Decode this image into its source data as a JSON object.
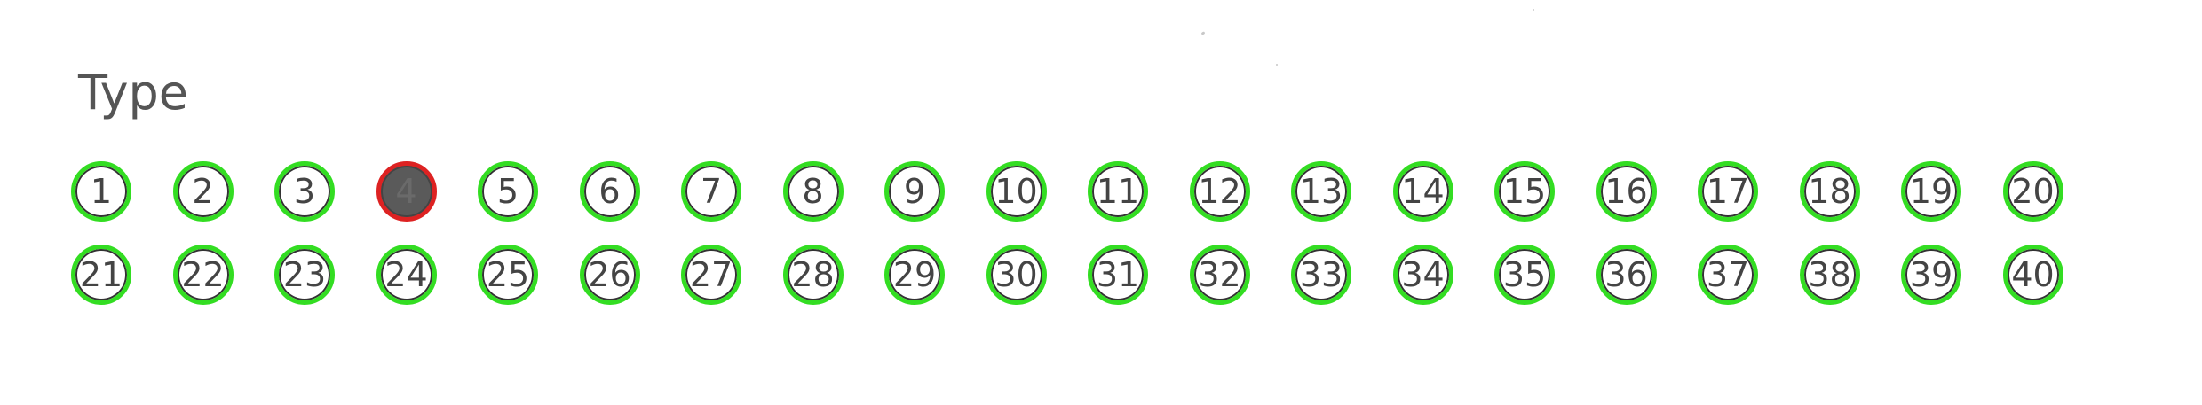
{
  "form": {
    "title": "Type",
    "options": [
      "1",
      "2",
      "3",
      "4",
      "5",
      "6",
      "7",
      "8",
      "9",
      "10",
      "11",
      "12",
      "13",
      "14",
      "15",
      "16",
      "17",
      "18",
      "19",
      "20",
      "21",
      "22",
      "23",
      "24",
      "25",
      "26",
      "27",
      "28",
      "29",
      "30",
      "31",
      "32",
      "33",
      "34",
      "35",
      "36",
      "37",
      "38",
      "39",
      "40"
    ],
    "selected": "4"
  },
  "colors": {
    "ring_unselected": "#33dd22",
    "ring_selected": "#dd2222",
    "fill_selected": "#5a5a5a",
    "text": "#444444"
  }
}
